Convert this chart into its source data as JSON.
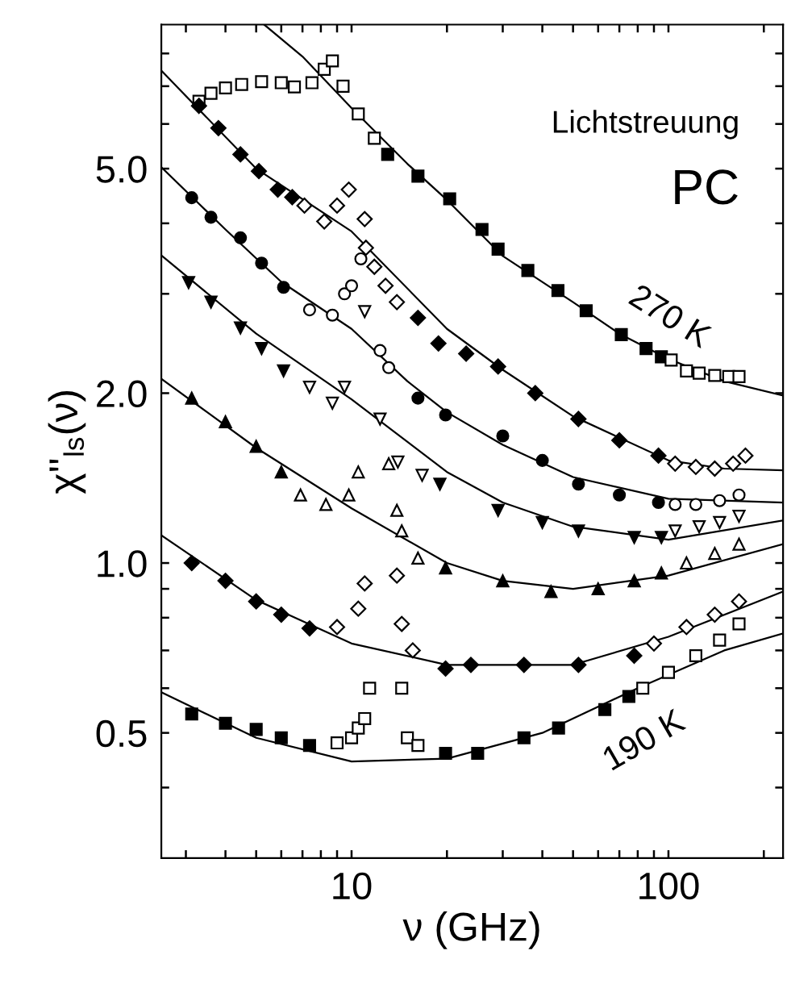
{
  "chart_data": {
    "type": "scatter",
    "xlabel": "ν (GHz)",
    "ylabel": "χ''$_{ls}$(ν)",
    "log": "xy",
    "grid": false,
    "xlim": [
      2.51,
      230
    ],
    "ylim": [
      0.3,
      9
    ],
    "xticks": [
      {
        "value": 3,
        "label": null
      },
      {
        "value": 4,
        "label": null
      },
      {
        "value": 5,
        "label": null
      },
      {
        "value": 6,
        "label": null
      },
      {
        "value": 7,
        "label": null
      },
      {
        "value": 8,
        "label": null
      },
      {
        "value": 9,
        "label": null
      },
      10,
      {
        "value": 20,
        "label": null
      },
      {
        "value": 30,
        "label": null
      },
      {
        "value": 40,
        "label": null
      },
      {
        "value": 50,
        "label": null
      },
      {
        "value": 60,
        "label": null
      },
      {
        "value": 70,
        "label": null
      },
      {
        "value": 80,
        "label": null
      },
      {
        "value": 90,
        "label": null
      },
      100,
      {
        "value": 200,
        "label": null
      }
    ],
    "yticks": [
      {
        "value": 0.4,
        "label": null
      },
      {
        "value": 0.5,
        "label": "0.5"
      },
      {
        "value": 0.6,
        "label": null
      },
      {
        "value": 0.7,
        "label": null
      },
      {
        "value": 0.8,
        "label": null
      },
      {
        "value": 0.9,
        "label": null
      },
      {
        "value": 1,
        "label": "1.0"
      },
      {
        "value": 2,
        "label": "2.0"
      },
      {
        "value": 3,
        "label": null
      },
      {
        "value": 4,
        "label": null
      },
      {
        "value": 5,
        "label": "5.0"
      },
      {
        "value": 6,
        "label": null
      },
      {
        "value": 7,
        "label": null
      },
      {
        "value": 8,
        "label": null
      }
    ],
    "annotations": [
      "Lichtstreuung",
      "PC",
      "270 K",
      "190 K"
    ],
    "series": [
      {
        "type": "scatter",
        "marker": "square",
        "color": "#ffffff",
        "x": [
          3.3,
          3.6,
          4.0,
          4.5,
          5.2,
          6.0,
          6.6,
          7.5,
          8.2,
          8.7,
          9.4,
          10.5,
          11.8
        ],
        "values": [
          6.58,
          6.8,
          6.95,
          7.05,
          7.13,
          7.1,
          6.98,
          7.1,
          7.5,
          7.76,
          7.0,
          6.25,
          5.66
        ]
      },
      {
        "type": "scatter",
        "marker": "square",
        "color": "#000000",
        "x": [
          13,
          16.2,
          20.4,
          25.8,
          29,
          36,
          44.8,
          55,
          71,
          85,
          95
        ],
        "values": [
          5.3,
          4.85,
          4.42,
          3.9,
          3.6,
          3.3,
          3.04,
          2.8,
          2.54,
          2.4,
          2.32
        ]
      },
      {
        "type": "scatter",
        "marker": "square",
        "color": "#ffffff",
        "x": [
          102,
          114,
          125,
          140,
          155,
          167
        ],
        "values": [
          2.29,
          2.19,
          2.17,
          2.15,
          2.14,
          2.14
        ]
      },
      {
        "type": "line",
        "color": "#000000",
        "x": [
          5.3,
          7,
          10,
          15,
          20,
          30,
          50,
          70,
          100,
          150,
          230
        ],
        "values": [
          9.0,
          7.9,
          6.4,
          5.1,
          4.4,
          3.5,
          2.9,
          2.55,
          2.3,
          2.1,
          1.98
        ]
      },
      {
        "type": "scatter",
        "marker": "diamond",
        "color": "#000000",
        "x": [
          3.3,
          3.8,
          4.46,
          5.1,
          5.85,
          6.5
        ],
        "values": [
          6.46,
          5.9,
          5.3,
          4.95,
          4.59,
          4.45
        ]
      },
      {
        "type": "scatter",
        "marker": "diamond",
        "color": "#ffffff",
        "x": [
          7.1,
          8.2,
          9.0,
          9.8,
          11.0,
          11.1,
          11.8,
          12.8,
          13.9
        ],
        "values": [
          4.3,
          4.03,
          4.3,
          4.59,
          4.07,
          3.62,
          3.35,
          3.1,
          2.9
        ]
      },
      {
        "type": "scatter",
        "marker": "diamond",
        "color": "#000000",
        "x": [
          16.2,
          18.8,
          23,
          29,
          38,
          52,
          70,
          93
        ],
        "values": [
          2.72,
          2.45,
          2.35,
          2.23,
          2.0,
          1.8,
          1.65,
          1.55
        ]
      },
      {
        "type": "scatter",
        "marker": "diamond",
        "color": "#ffffff",
        "x": [
          105,
          122,
          140,
          160,
          175
        ],
        "values": [
          1.5,
          1.48,
          1.47,
          1.5,
          1.55
        ]
      },
      {
        "type": "line",
        "color": "#000000",
        "x": [
          2.51,
          5,
          10,
          20,
          30,
          50,
          100,
          150,
          230
        ],
        "values": [
          7.46,
          5.0,
          3.87,
          2.6,
          2.2,
          1.82,
          1.52,
          1.47,
          1.46
        ]
      },
      {
        "type": "scatter",
        "marker": "circle",
        "color": "#000000",
        "x": [
          3.13,
          3.6,
          4.46,
          5.2,
          6.1
        ],
        "values": [
          4.44,
          4.1,
          3.77,
          3.4,
          3.08
        ]
      },
      {
        "type": "scatter",
        "marker": "circle",
        "color": "#ffffff",
        "x": [
          7.37,
          8.7,
          9.5,
          10.0,
          10.7,
          12.3,
          13.1
        ],
        "values": [
          2.81,
          2.75,
          3.0,
          3.1,
          3.46,
          2.38,
          2.22
        ]
      },
      {
        "type": "scatter",
        "marker": "circle",
        "color": "#000000",
        "x": [
          16.2,
          19.8,
          30,
          40,
          52,
          70,
          93
        ],
        "values": [
          1.96,
          1.83,
          1.68,
          1.52,
          1.38,
          1.32,
          1.28
        ]
      },
      {
        "type": "scatter",
        "marker": "circle",
        "color": "#ffffff",
        "x": [
          105,
          122,
          145,
          167
        ],
        "values": [
          1.27,
          1.27,
          1.29,
          1.32
        ]
      },
      {
        "type": "line",
        "color": "#000000",
        "x": [
          2.51,
          4,
          6,
          10,
          15,
          20,
          30,
          50,
          100,
          230
        ],
        "values": [
          5.03,
          3.9,
          3.15,
          2.6,
          2.1,
          1.85,
          1.62,
          1.42,
          1.3,
          1.28
        ]
      },
      {
        "type": "scatter",
        "marker": "triangle_down",
        "color": "#000000",
        "x": [
          3.06,
          3.6,
          4.46,
          5.2,
          6.1
        ],
        "values": [
          3.14,
          2.9,
          2.61,
          2.4,
          2.19
        ]
      },
      {
        "type": "scatter",
        "marker": "triangle_down",
        "color": "#ffffff",
        "x": [
          7.37,
          8.7,
          9.5,
          11.0,
          12.3,
          14.0,
          16.7
        ],
        "values": [
          2.05,
          1.92,
          2.05,
          2.79,
          1.8,
          1.51,
          1.43
        ]
      },
      {
        "type": "scatter",
        "marker": "triangle_down",
        "color": "#000000",
        "x": [
          19,
          29,
          40,
          52,
          78,
          95
        ],
        "values": [
          1.38,
          1.24,
          1.18,
          1.14,
          1.11,
          1.11
        ]
      },
      {
        "type": "scatter",
        "marker": "triangle_down",
        "color": "#ffffff",
        "x": [
          105,
          125,
          145,
          167
        ],
        "values": [
          1.14,
          1.16,
          1.18,
          1.21
        ]
      },
      {
        "type": "line",
        "color": "#000000",
        "x": [
          2.51,
          5,
          10,
          20,
          30,
          50,
          100,
          230
        ],
        "values": [
          3.51,
          2.55,
          1.95,
          1.45,
          1.28,
          1.16,
          1.1,
          1.19
        ]
      },
      {
        "type": "scatter",
        "marker": "triangle",
        "color": "#000000",
        "x": [
          3.13,
          4,
          5,
          6
        ],
        "values": [
          1.96,
          1.78,
          1.61,
          1.45
        ]
      },
      {
        "type": "scatter",
        "marker": "triangle",
        "color": "#ffffff",
        "x": [
          6.9,
          8.3,
          9.8,
          10.5,
          13.1,
          13.9,
          14.4,
          16.2
        ],
        "values": [
          1.32,
          1.27,
          1.32,
          1.45,
          1.5,
          1.24,
          1.14,
          1.02
        ]
      },
      {
        "type": "scatter",
        "marker": "triangle",
        "color": "#000000",
        "x": [
          19.8,
          30,
          42.6,
          60,
          78,
          95
        ],
        "values": [
          0.98,
          0.93,
          0.89,
          0.9,
          0.93,
          0.96
        ]
      },
      {
        "type": "scatter",
        "marker": "triangle",
        "color": "#ffffff",
        "x": [
          114,
          140,
          167
        ],
        "values": [
          1.0,
          1.04,
          1.08
        ]
      },
      {
        "type": "line",
        "color": "#000000",
        "x": [
          2.51,
          5,
          10,
          20,
          30,
          50,
          100,
          230
        ],
        "values": [
          2.12,
          1.6,
          1.25,
          1.0,
          0.93,
          0.9,
          0.95,
          1.08
        ]
      },
      {
        "type": "scatter",
        "marker": "diamond",
        "color": "#000000",
        "x": [
          3.13,
          4,
          5,
          6,
          7.37
        ],
        "values": [
          1.0,
          0.93,
          0.855,
          0.81,
          0.766
        ]
      },
      {
        "type": "scatter",
        "marker": "diamond",
        "color": "#ffffff",
        "x": [
          9.0,
          10.5,
          11.0,
          13.9,
          14.4,
          15.6
        ],
        "values": [
          0.77,
          0.83,
          0.92,
          0.95,
          0.78,
          0.7
        ]
      },
      {
        "type": "scatter",
        "marker": "diamond",
        "color": "#000000",
        "x": [
          19.8,
          23.8,
          35,
          52,
          78
        ],
        "values": [
          0.65,
          0.66,
          0.66,
          0.66,
          0.685
        ]
      },
      {
        "type": "scatter",
        "marker": "diamond",
        "color": "#ffffff",
        "x": [
          90,
          114,
          140,
          167
        ],
        "values": [
          0.72,
          0.77,
          0.81,
          0.855
        ]
      },
      {
        "type": "line",
        "color": "#000000",
        "x": [
          2.51,
          5,
          10,
          20,
          50,
          100,
          230
        ],
        "values": [
          1.12,
          0.86,
          0.72,
          0.66,
          0.66,
          0.74,
          0.89
        ]
      },
      {
        "type": "scatter",
        "marker": "square",
        "color": "#000000",
        "x": [
          3.13,
          4,
          5,
          6,
          7.37
        ],
        "values": [
          0.54,
          0.52,
          0.507,
          0.49,
          0.475
        ]
      },
      {
        "type": "scatter",
        "marker": "square",
        "color": "#ffffff",
        "x": [
          9.0,
          10.0,
          10.5,
          11.0,
          11.4,
          14.4,
          15.0,
          16.2
        ],
        "values": [
          0.48,
          0.49,
          0.51,
          0.53,
          0.6,
          0.6,
          0.49,
          0.475
        ]
      },
      {
        "type": "scatter",
        "marker": "square",
        "color": "#000000",
        "x": [
          19.8,
          25,
          35,
          45,
          63,
          75
        ],
        "values": [
          0.46,
          0.46,
          0.49,
          0.51,
          0.55,
          0.58
        ]
      },
      {
        "type": "scatter",
        "marker": "square",
        "color": "#ffffff",
        "x": [
          83,
          100,
          122,
          145,
          167
        ],
        "values": [
          0.6,
          0.64,
          0.685,
          0.73,
          0.78
        ]
      },
      {
        "type": "line",
        "color": "#000000",
        "x": [
          2.51,
          5,
          10,
          20,
          40,
          80,
          150,
          230
        ],
        "values": [
          0.59,
          0.49,
          0.445,
          0.45,
          0.5,
          0.6,
          0.7,
          0.75
        ]
      }
    ]
  }
}
